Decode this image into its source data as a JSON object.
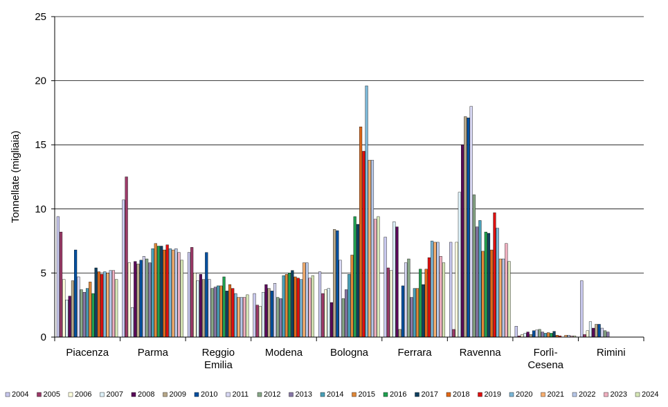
{
  "chart_data": {
    "type": "bar",
    "ylabel": "Tonnellate (migliaia)",
    "xlabel": "",
    "ylim": [
      0,
      25
    ],
    "yticks": [
      0,
      5,
      10,
      15,
      20,
      25
    ],
    "grid": true,
    "legend_position": "bottom",
    "categories": [
      "Piacenza",
      "Parma",
      "Reggio Emilia",
      "Modena",
      "Bologna",
      "Ferrara",
      "Ravenna",
      "Forlì-Cesena",
      "Rimini"
    ],
    "category_lines": [
      [
        "Piacenza"
      ],
      [
        "Parma"
      ],
      [
        "Reggio",
        "Emilia"
      ],
      [
        "Modena"
      ],
      [
        "Bologna"
      ],
      [
        "Ferrara"
      ],
      [
        "Ravenna"
      ],
      [
        "Forlì-",
        "Cesena"
      ],
      [
        "Rimini"
      ]
    ],
    "series": [
      {
        "name": "2004",
        "color": "#c8c8ee",
        "values": [
          9.4,
          10.7,
          6.6,
          3.4,
          5.1,
          7.8,
          7.4,
          0.85,
          4.4
        ]
      },
      {
        "name": "2005",
        "color": "#9c3a68",
        "values": [
          8.2,
          12.5,
          7.0,
          2.5,
          3.4,
          5.4,
          0.6,
          0.1,
          0.2
        ]
      },
      {
        "name": "2006",
        "color": "#ffffdd",
        "values": [
          4.5,
          5.8,
          5.0,
          2.4,
          3.7,
          5.2,
          7.4,
          0.2,
          0.5
        ]
      },
      {
        "name": "2007",
        "color": "#dcf0f8",
        "values": [
          2.9,
          2.3,
          4.4,
          3.5,
          3.8,
          9.0,
          11.3,
          0.3,
          1.2
        ]
      },
      {
        "name": "2008",
        "color": "#5a0a5a",
        "values": [
          3.2,
          5.9,
          4.9,
          4.1,
          2.7,
          8.6,
          15.0,
          0.4,
          0.7
        ]
      },
      {
        "name": "2009",
        "color": "#b8a888",
        "values": [
          4.4,
          5.7,
          4.5,
          3.8,
          8.4,
          0.6,
          17.2,
          0.2,
          1.0
        ]
      },
      {
        "name": "2010",
        "color": "#0050a0",
        "values": [
          6.8,
          6.0,
          6.6,
          3.6,
          8.3,
          4.0,
          17.1,
          0.5,
          1.0
        ]
      },
      {
        "name": "2011",
        "color": "#d8d8f4",
        "values": [
          4.7,
          6.3,
          4.5,
          4.2,
          6.0,
          5.8,
          18.0,
          0.55,
          0.7
        ]
      },
      {
        "name": "2012",
        "color": "#88a888",
        "values": [
          3.7,
          6.1,
          3.8,
          3.1,
          3.0,
          6.1,
          11.1,
          0.6,
          0.5
        ]
      },
      {
        "name": "2013",
        "color": "#8878a8",
        "values": [
          3.5,
          5.8,
          3.9,
          3.0,
          3.7,
          3.1,
          8.6,
          0.4,
          0.4
        ]
      },
      {
        "name": "2014",
        "color": "#4aa0b8",
        "values": [
          3.8,
          6.9,
          4.0,
          4.8,
          4.9,
          3.8,
          9.1,
          0.3,
          0.0
        ]
      },
      {
        "name": "2015",
        "color": "#e08838",
        "values": [
          4.3,
          7.3,
          4.0,
          4.9,
          6.4,
          3.8,
          6.7,
          0.35,
          0.0
        ]
      },
      {
        "name": "2016",
        "color": "#20a050",
        "values": [
          3.4,
          7.1,
          4.7,
          5.0,
          9.4,
          5.3,
          8.2,
          0.3,
          0.0
        ]
      },
      {
        "name": "2017",
        "color": "#104060",
        "values": [
          5.4,
          7.1,
          3.6,
          5.2,
          8.8,
          4.1,
          8.1,
          0.45,
          0.0
        ]
      },
      {
        "name": "2018",
        "color": "#e06818",
        "values": [
          5.1,
          6.8,
          4.1,
          4.7,
          16.4,
          5.3,
          6.8,
          0.15,
          0.0
        ]
      },
      {
        "name": "2019",
        "color": "#e01010",
        "values": [
          4.9,
          7.2,
          3.8,
          4.6,
          14.5,
          6.2,
          9.7,
          0.1,
          0.0
        ]
      },
      {
        "name": "2020",
        "color": "#7cb8d8",
        "values": [
          5.1,
          6.9,
          3.4,
          4.5,
          19.6,
          7.5,
          8.5,
          0.0,
          0.0
        ]
      },
      {
        "name": "2021",
        "color": "#f8b070",
        "values": [
          5.0,
          6.8,
          3.1,
          5.8,
          13.8,
          7.4,
          6.1,
          0.15,
          0.0
        ]
      },
      {
        "name": "2022",
        "color": "#b8c8e8",
        "values": [
          5.2,
          6.9,
          3.1,
          5.8,
          13.8,
          7.4,
          6.1,
          0.15,
          0.0
        ]
      },
      {
        "name": "2023",
        "color": "#f0b0c0",
        "values": [
          5.2,
          6.6,
          3.1,
          4.6,
          9.2,
          6.3,
          7.3,
          0.1,
          0.0
        ]
      },
      {
        "name": "2024",
        "color": "#d8e8b8",
        "values": [
          4.5,
          6.0,
          3.3,
          4.8,
          9.4,
          5.8,
          5.9,
          0.1,
          0.0
        ]
      }
    ]
  }
}
